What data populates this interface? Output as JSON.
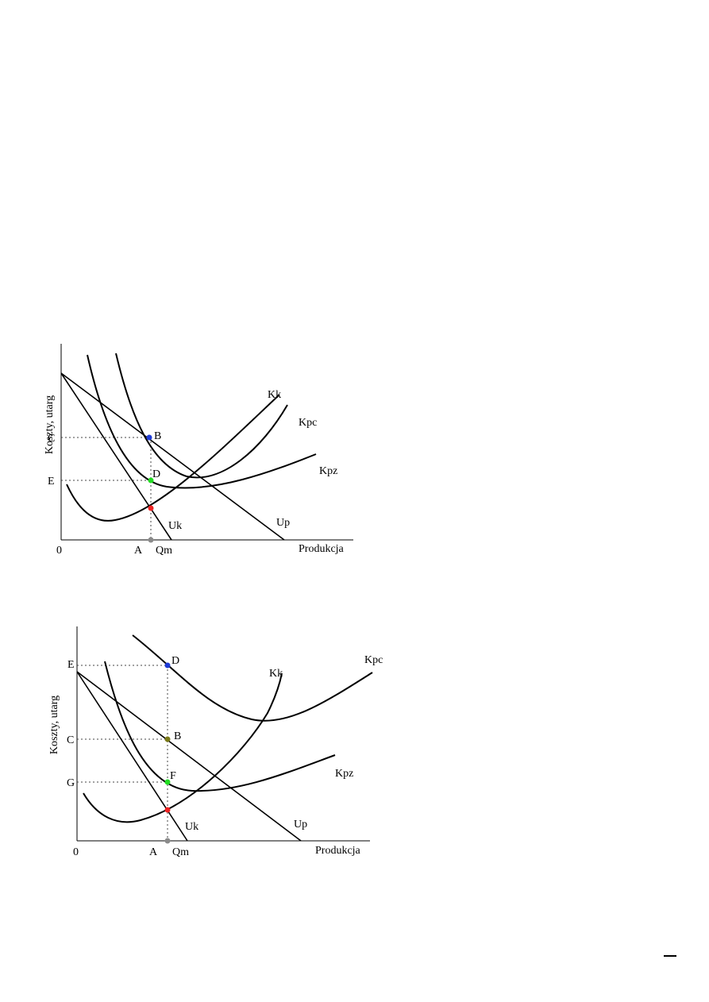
{
  "colors": {
    "blue": "#1f3bd6",
    "green": "#22dd22",
    "red": "#ee2222",
    "olive": "#7a7a18",
    "gray": "#8a8a8a"
  },
  "figure1": {
    "ylabel": "Koszty, utarg",
    "xlabel": "Produkcja",
    "origin": "0",
    "xticks": {
      "A": "A",
      "Qm": "Qm"
    },
    "yticks": {
      "C": "C",
      "E": "E"
    },
    "curves": {
      "Kk": "Kk",
      "Kpc": "Kpc",
      "Kpz": "Kpz",
      "Up": "Up",
      "Uk": "Uk"
    },
    "points": {
      "B": "B",
      "D": "D"
    }
  },
  "figure2": {
    "ylabel": "Koszty, utarg",
    "xlabel": "Produkcja",
    "origin": "0",
    "xticks": {
      "A": "A",
      "Qm": "Qm"
    },
    "yticks": {
      "E": "E",
      "C": "C",
      "G": "G"
    },
    "curves": {
      "Kk": "Kk",
      "Kpc": "Kpc",
      "Kpz": "Kpz",
      "Up": "Up",
      "Uk": "Uk"
    },
    "points": {
      "D": "D",
      "B": "B",
      "F": "F"
    }
  }
}
